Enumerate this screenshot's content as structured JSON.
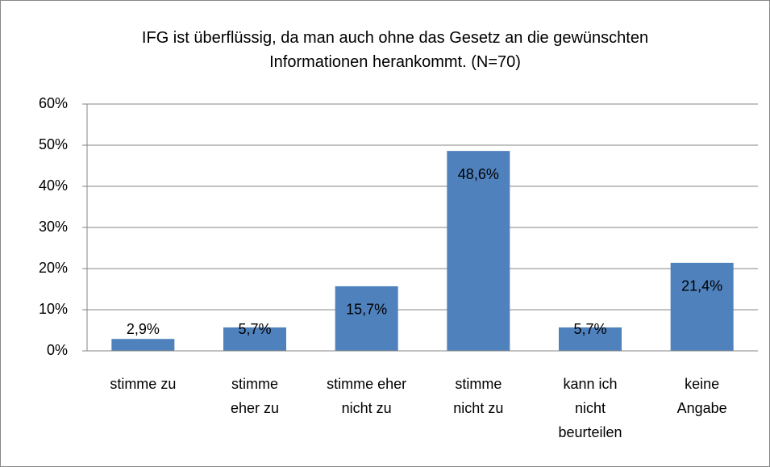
{
  "chart_data": {
    "type": "bar",
    "title": "IFG ist überflüssig, da man auch ohne das Gesetz an die gewünschten\nInformationen herankommt. (N=70)",
    "categories": [
      "stimme zu",
      "stimme\neher zu",
      "stimme eher\nnicht zu",
      "stimme\nnicht zu",
      "kann ich\nnicht\nbeurteilen",
      "keine\nAngabe"
    ],
    "values": [
      2.9,
      5.7,
      15.7,
      48.6,
      5.7,
      21.4
    ],
    "value_labels": [
      "2,9%",
      "5,7%",
      "15,7%",
      "48,6%",
      "5,7%",
      "21,4%"
    ],
    "color": "#4f81bd",
    "ylim": [
      0,
      60
    ],
    "yticks": [
      {
        "value": 0,
        "label": "0%"
      },
      {
        "value": 10,
        "label": "10%"
      },
      {
        "value": 20,
        "label": "20%"
      },
      {
        "value": 30,
        "label": "30%"
      },
      {
        "value": 40,
        "label": "40%"
      },
      {
        "value": 50,
        "label": "50%"
      },
      {
        "value": 60,
        "label": "60%"
      }
    ],
    "grid": true
  }
}
